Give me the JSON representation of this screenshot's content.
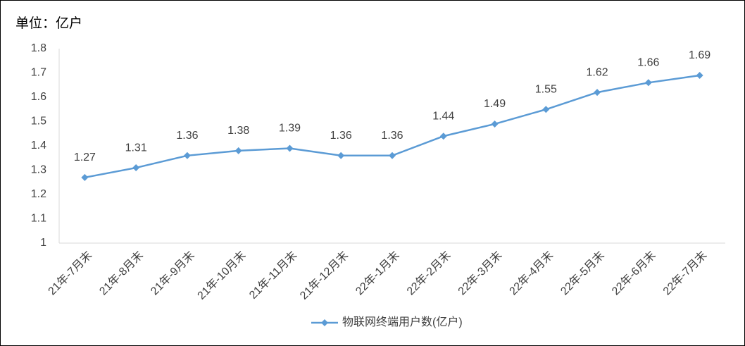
{
  "chart_data": {
    "type": "line",
    "unit_label": "单位：亿户",
    "categories": [
      "21年-7月末",
      "21年-8月末",
      "21年-9月末",
      "21年-10月末",
      "21年-11月末",
      "21年-12月末",
      "22年-1月末",
      "22年-2月末",
      "22年-3月末",
      "22年-4月末",
      "22年-5月末",
      "22年-6月末",
      "22年-7月末"
    ],
    "series": [
      {
        "name": "物联网终端用户数(亿户)",
        "color": "#5b9bd5",
        "values": [
          1.27,
          1.31,
          1.36,
          1.38,
          1.39,
          1.36,
          1.36,
          1.44,
          1.49,
          1.55,
          1.62,
          1.66,
          1.69
        ]
      }
    ],
    "ylim": [
      1,
      1.8
    ],
    "yticks": [
      1,
      1.1,
      1.2,
      1.3,
      1.4,
      1.5,
      1.6,
      1.7,
      1.8
    ],
    "grid": false,
    "legend": "bottom"
  }
}
